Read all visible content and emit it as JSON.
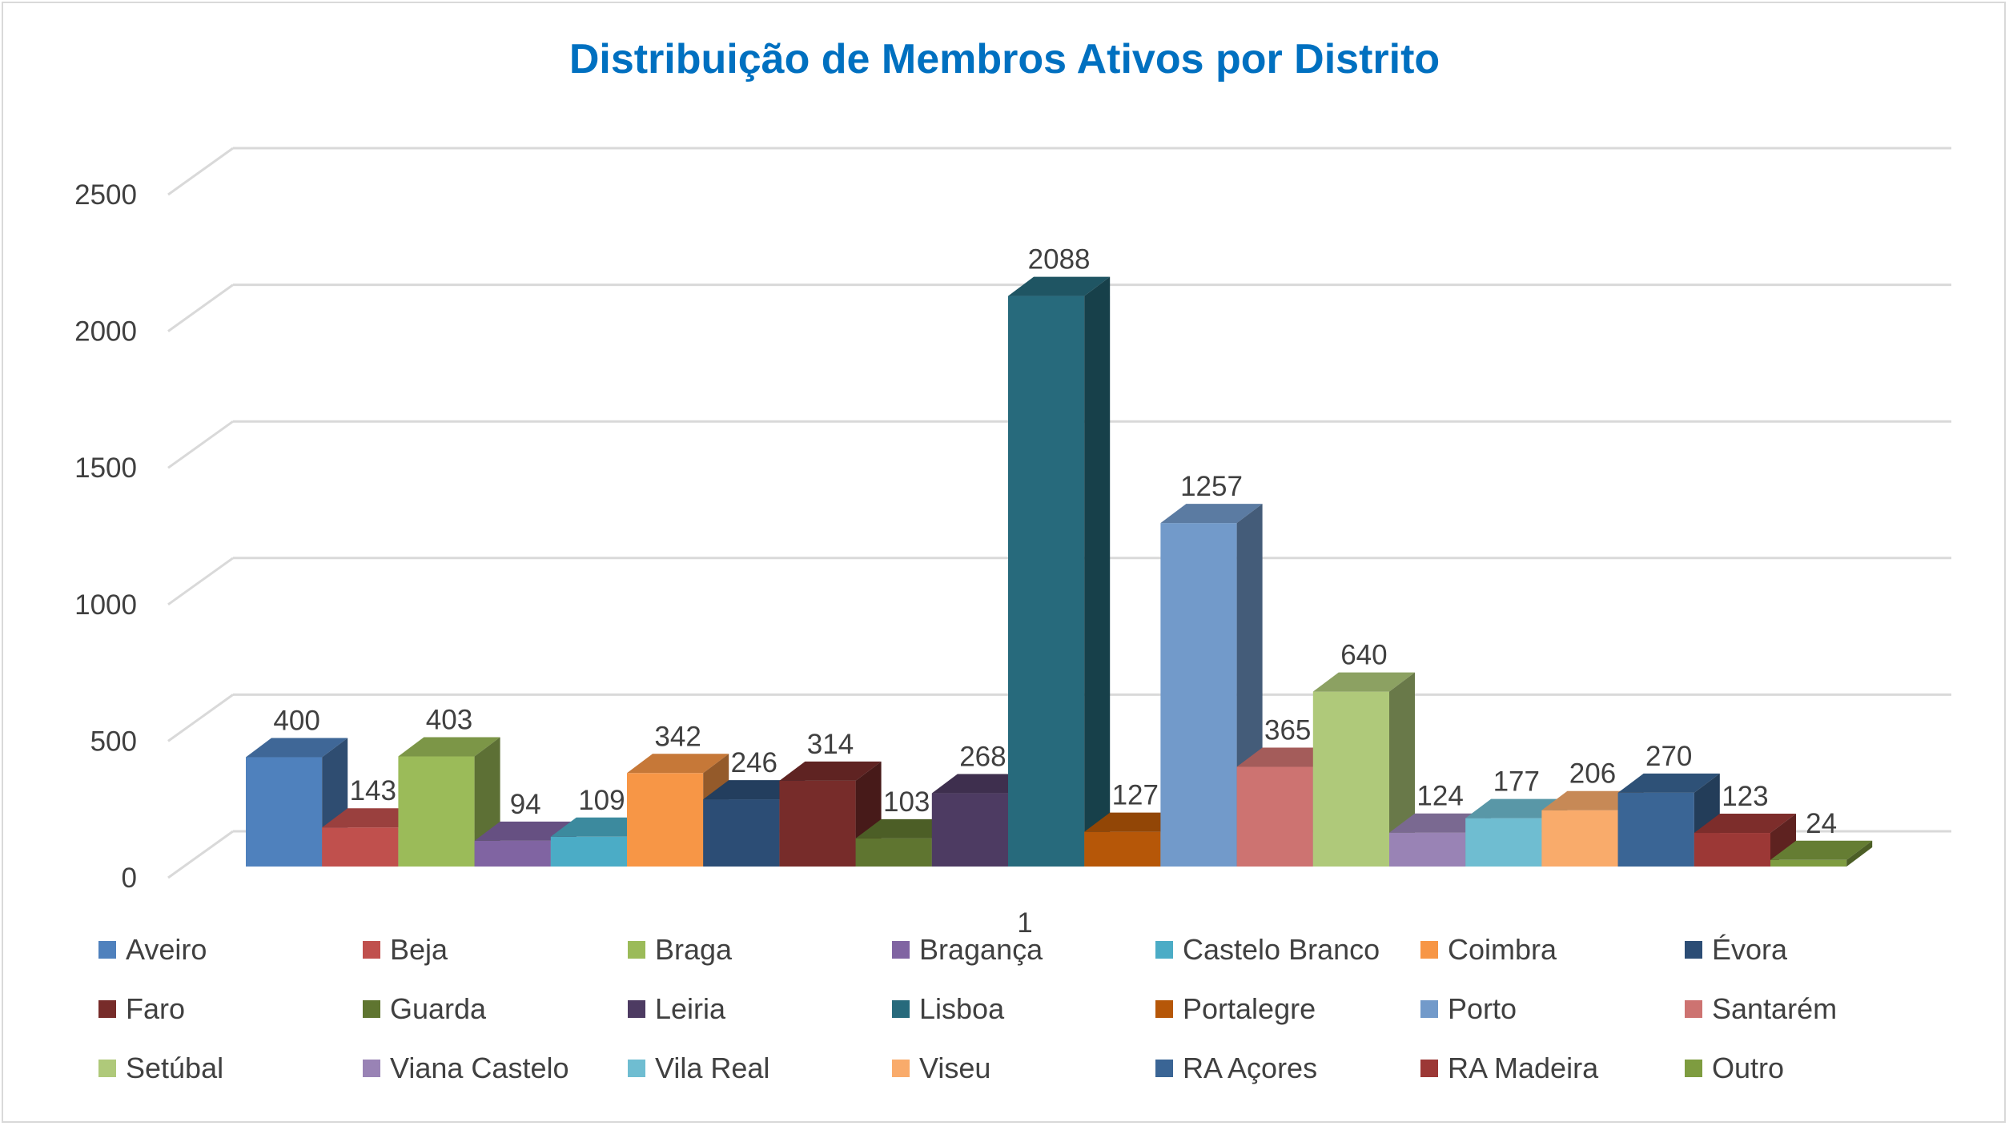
{
  "chart_data": {
    "type": "bar",
    "title": "Distribuição de Membros Ativos por Distrito",
    "categories": [
      "1"
    ],
    "ylim": [
      0,
      2500
    ],
    "yticks": [
      0,
      500,
      1000,
      1500,
      2000,
      2500
    ],
    "grid": true,
    "legend_position": "bottom",
    "series": [
      {
        "name": "Aveiro",
        "values": [
          400
        ],
        "color": "#4F81BD"
      },
      {
        "name": "Beja",
        "values": [
          143
        ],
        "color": "#C0504D"
      },
      {
        "name": "Braga",
        "values": [
          403
        ],
        "color": "#9BBB59"
      },
      {
        "name": "Bragança",
        "values": [
          94
        ],
        "color": "#8064A2"
      },
      {
        "name": "Castelo Branco",
        "values": [
          109
        ],
        "color": "#4BACC6"
      },
      {
        "name": "Coimbra",
        "values": [
          342
        ],
        "color": "#F79646"
      },
      {
        "name": "Évora",
        "values": [
          246
        ],
        "color": "#2C4D75"
      },
      {
        "name": "Faro",
        "values": [
          314
        ],
        "color": "#772C2A"
      },
      {
        "name": "Guarda",
        "values": [
          103
        ],
        "color": "#5F7530"
      },
      {
        "name": "Leiria",
        "values": [
          268
        ],
        "color": "#4D3B62"
      },
      {
        "name": "Lisboa",
        "values": [
          2088
        ],
        "color": "#276A7C"
      },
      {
        "name": "Portalegre",
        "values": [
          127
        ],
        "color": "#B65708"
      },
      {
        "name": "Porto",
        "values": [
          1257
        ],
        "color": "#729ACA"
      },
      {
        "name": "Santarém",
        "values": [
          365
        ],
        "color": "#CD7371"
      },
      {
        "name": "Setúbal",
        "values": [
          640
        ],
        "color": "#AFC97A"
      },
      {
        "name": "Viana Castelo",
        "values": [
          124
        ],
        "color": "#9983B5"
      },
      {
        "name": "Vila Real",
        "values": [
          177
        ],
        "color": "#6FBDD1"
      },
      {
        "name": "Viseu",
        "values": [
          206
        ],
        "color": "#F9AB6B"
      },
      {
        "name": "RA Açores",
        "values": [
          270
        ],
        "color": "#3A6595"
      },
      {
        "name": "RA Madeira",
        "values": [
          123
        ],
        "color": "#9C3836"
      },
      {
        "name": "Outro",
        "values": [
          24
        ],
        "color": "#7E9C40"
      }
    ]
  }
}
